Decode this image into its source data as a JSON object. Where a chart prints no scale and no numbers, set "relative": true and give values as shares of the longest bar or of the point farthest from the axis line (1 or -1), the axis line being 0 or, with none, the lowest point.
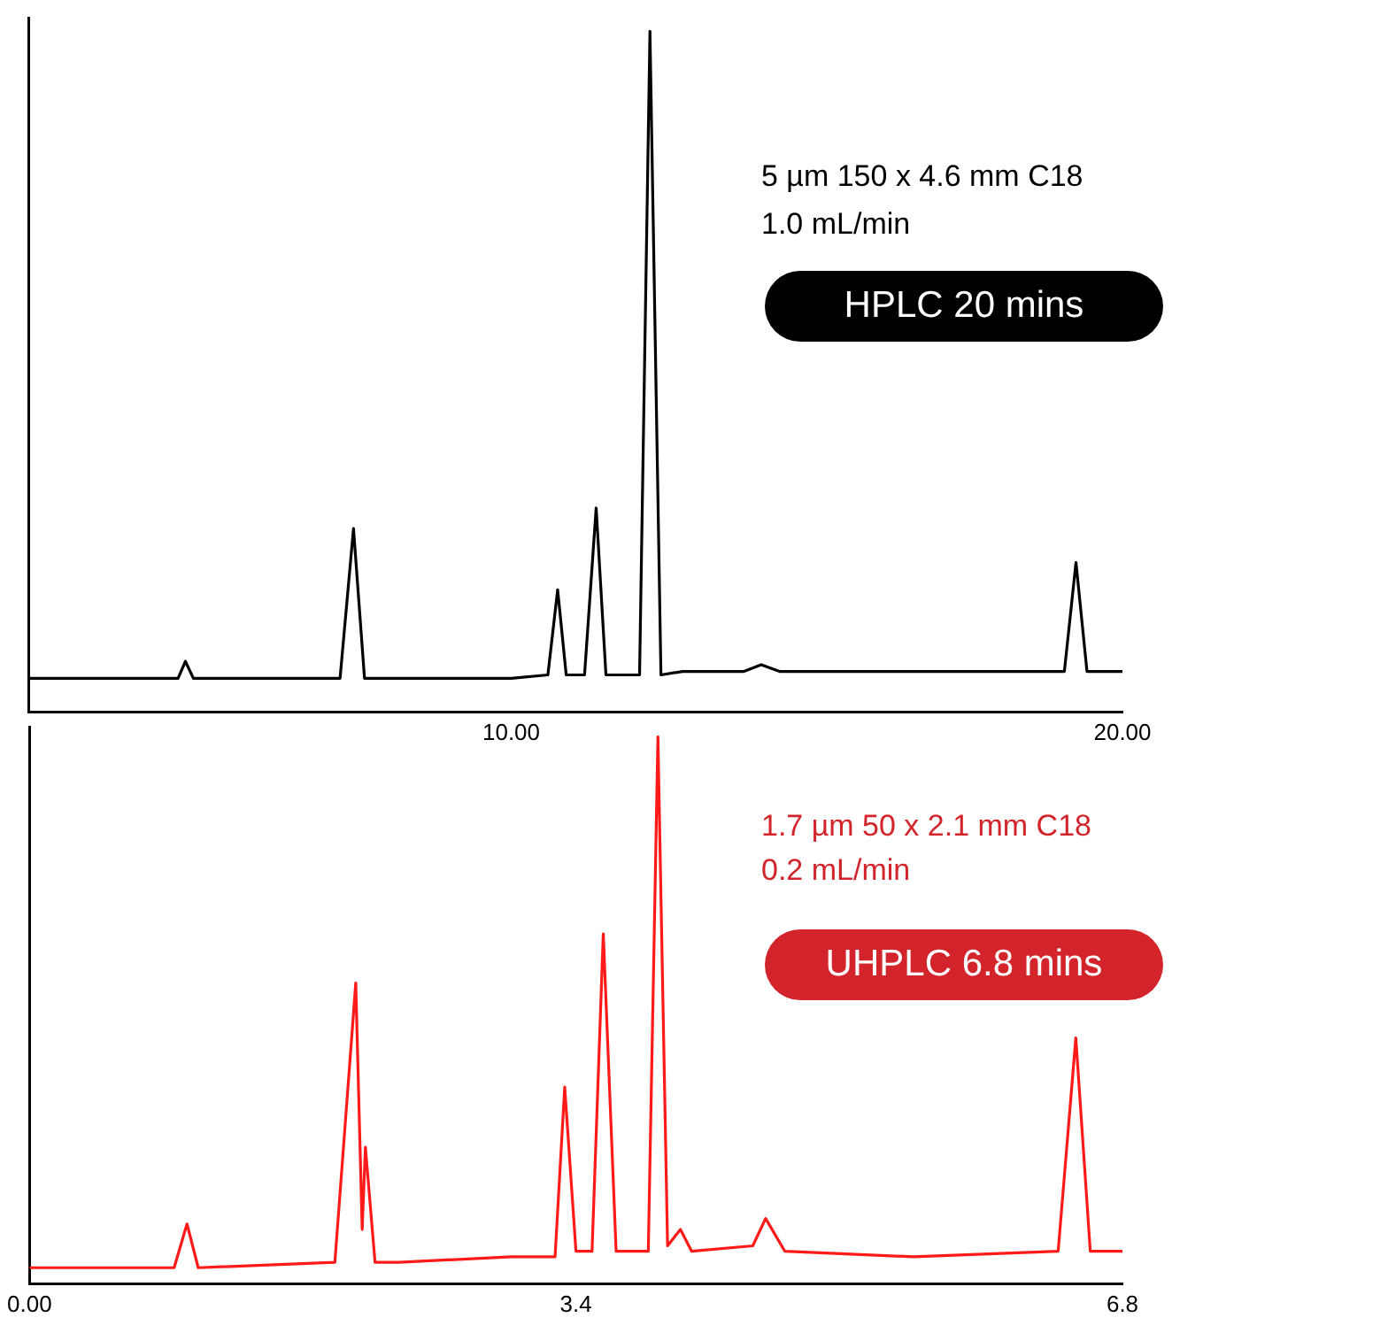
{
  "chart_data": [
    {
      "type": "line",
      "relative": true,
      "tick_labels": "x",
      "marker": "none",
      "line_style": "solid",
      "xlim": [
        2.1,
        20
      ],
      "xticks": [
        {
          "value": 10,
          "label": "10.00"
        },
        {
          "value": 20,
          "label": "20.00"
        }
      ],
      "annotations": [
        "5 µm 150 x 4.6 mm C18",
        "1.0 mL/min",
        "HPLC 20 mins"
      ],
      "series": [
        {
          "color": "#000000",
          "x": [
            2.1,
            4.4,
            4.55,
            4.67,
            4.8,
            7.2,
            7.42,
            7.6,
            10.0,
            10.6,
            10.76,
            10.9,
            11.2,
            11.39,
            11.55,
            12.1,
            12.27,
            12.45,
            12.8,
            13.8,
            14.09,
            14.4,
            17.0,
            19.05,
            19.24,
            19.42,
            20.0
          ],
          "values": [
            0.05,
            0.05,
            0.05,
            0.075,
            0.05,
            0.05,
            0.27,
            0.05,
            0.05,
            0.055,
            0.18,
            0.055,
            0.055,
            0.3,
            0.055,
            0.055,
            1,
            0.055,
            0.06,
            0.06,
            0.07,
            0.06,
            0.06,
            0.06,
            0.22,
            0.06,
            0.06
          ]
        }
      ]
    },
    {
      "type": "line",
      "relative": true,
      "tick_labels": "x",
      "marker": "none",
      "line_style": "solid",
      "xlim": [
        0,
        6.8
      ],
      "xticks": [
        {
          "value": 0,
          "label": "0.00"
        },
        3.4,
        6.8
      ],
      "annotations": [
        "1.7 µm 50 x 2.1 mm C18",
        "0.2 mL/min",
        "UHPLC 6.8 mins"
      ],
      "series": [
        {
          "color": "#ff1a1a",
          "x": [
            0,
            0.9,
            0.98,
            1.05,
            1.9,
            2.03,
            2.07,
            2.09,
            2.15,
            2.3,
            3.0,
            3.2,
            3.27,
            3.33,
            3.4,
            3.5,
            3.57,
            3.65,
            3.85,
            3.91,
            3.97,
            4.05,
            4.12,
            4.5,
            4.58,
            4.7,
            5.5,
            6.4,
            6.51,
            6.6,
            6.8
          ],
          "values": [
            0.03,
            0.03,
            0.11,
            0.03,
            0.04,
            0.55,
            0.1,
            0.25,
            0.04,
            0.04,
            0.05,
            0.05,
            0.05,
            0.36,
            0.06,
            0.06,
            0.64,
            0.06,
            0.06,
            1,
            0.07,
            0.1,
            0.06,
            0.07,
            0.12,
            0.06,
            0.05,
            0.06,
            0.45,
            0.06,
            0.06
          ]
        }
      ]
    }
  ]
}
